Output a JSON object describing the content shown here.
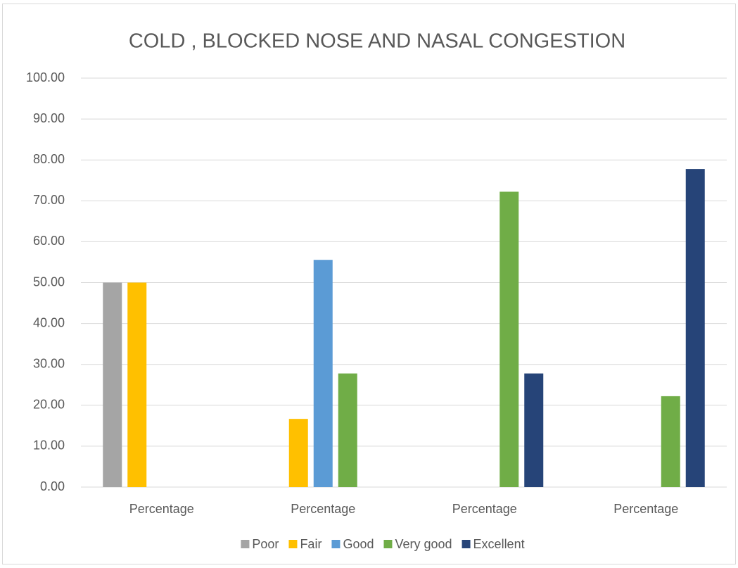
{
  "chart_data": {
    "type": "bar",
    "title": "COLD , BLOCKED NOSE AND NASAL CONGESTION",
    "categories": [
      "Percentage",
      "Percentage",
      "Percentage",
      "Percentage"
    ],
    "series": [
      {
        "name": "Poor",
        "color": "#a5a5a5",
        "values": [
          50,
          0,
          0,
          0
        ]
      },
      {
        "name": "Fair",
        "color": "#ffc000",
        "values": [
          50,
          16.67,
          0,
          0
        ]
      },
      {
        "name": "Good",
        "color": "#5b9bd5",
        "values": [
          0,
          55.56,
          0,
          0
        ]
      },
      {
        "name": "Very good",
        "color": "#70ad47",
        "values": [
          0,
          27.78,
          72.22,
          22.22
        ]
      },
      {
        "name": "Excellent",
        "color": "#264478",
        "values": [
          0,
          0,
          27.78,
          77.78
        ]
      }
    ],
    "ylim": [
      0,
      100
    ],
    "yticks": [
      {
        "value": 0,
        "label": "0.00"
      },
      {
        "value": 10,
        "label": "10.00"
      },
      {
        "value": 20,
        "label": "20.00"
      },
      {
        "value": 30,
        "label": "30.00"
      },
      {
        "value": 40,
        "label": "40.00"
      },
      {
        "value": 50,
        "label": "50.00"
      },
      {
        "value": 60,
        "label": "60.00"
      },
      {
        "value": 70,
        "label": "70.00"
      },
      {
        "value": 80,
        "label": "80.00"
      },
      {
        "value": 90,
        "label": "90.00"
      },
      {
        "value": 100,
        "label": "100.00"
      }
    ],
    "grid": true,
    "legend": "bottom"
  }
}
